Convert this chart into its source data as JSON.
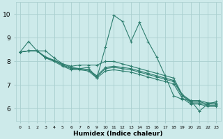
{
  "xlabel": "Humidex (Indice chaleur)",
  "bg_color": "#cdeaea",
  "line_color": "#2d7d6e",
  "grid_color": "#aacfcf",
  "xlim": [
    -0.5,
    23.5
  ],
  "ylim": [
    5.5,
    10.5
  ],
  "yticks": [
    6,
    7,
    8,
    9,
    10
  ],
  "xtick_labels": [
    "0",
    "1",
    "2",
    "3",
    "4",
    "5",
    "6",
    "7",
    "8",
    "9",
    "10",
    "11",
    "12",
    "13",
    "14",
    "15",
    "16",
    "17",
    "18",
    "19",
    "20",
    "21",
    "22",
    "23"
  ],
  "series": [
    {
      "x": [
        0,
        1,
        2,
        3,
        4,
        5,
        6,
        7,
        8,
        9,
        10,
        11,
        12,
        13,
        14,
        15,
        16,
        17,
        18,
        19,
        20,
        21,
        22,
        23
      ],
      "y": [
        8.4,
        8.85,
        8.45,
        8.45,
        8.15,
        7.9,
        7.75,
        7.7,
        7.75,
        7.3,
        8.6,
        9.95,
        9.7,
        8.85,
        9.65,
        8.85,
        8.2,
        7.4,
        6.55,
        6.4,
        6.35,
        5.9,
        6.2,
        6.3
      ]
    },
    {
      "x": [
        0,
        1,
        2,
        3,
        4,
        5,
        6,
        7,
        8,
        9,
        10,
        11,
        12,
        13,
        14,
        15,
        16,
        17,
        18,
        19,
        20,
        21,
        22,
        23
      ],
      "y": [
        8.4,
        8.45,
        8.45,
        8.2,
        8.05,
        7.9,
        7.8,
        7.85,
        7.85,
        7.85,
        8.0,
        8.0,
        7.9,
        7.8,
        7.7,
        7.6,
        7.5,
        7.4,
        7.3,
        6.6,
        6.35,
        6.35,
        6.25,
        6.25
      ]
    },
    {
      "x": [
        0,
        1,
        2,
        3,
        4,
        5,
        6,
        7,
        8,
        9,
        10,
        11,
        12,
        13,
        14,
        15,
        16,
        17,
        18,
        19,
        20,
        21,
        22,
        23
      ],
      "y": [
        8.4,
        8.45,
        8.45,
        8.15,
        8.05,
        7.85,
        7.7,
        7.7,
        7.65,
        7.4,
        7.75,
        7.8,
        7.75,
        7.7,
        7.6,
        7.5,
        7.4,
        7.3,
        7.2,
        6.6,
        6.3,
        6.3,
        6.2,
        6.2
      ]
    },
    {
      "x": [
        0,
        1,
        2,
        3,
        4,
        5,
        6,
        7,
        8,
        9,
        10,
        11,
        12,
        13,
        14,
        15,
        16,
        17,
        18,
        19,
        20,
        21,
        22,
        23
      ],
      "y": [
        8.4,
        8.45,
        8.45,
        8.15,
        8.05,
        7.85,
        7.7,
        7.7,
        7.65,
        7.35,
        7.7,
        7.75,
        7.7,
        7.65,
        7.55,
        7.45,
        7.35,
        7.25,
        7.15,
        6.55,
        6.25,
        6.25,
        6.15,
        6.15
      ]
    },
    {
      "x": [
        0,
        1,
        2,
        3,
        4,
        5,
        6,
        7,
        8,
        9,
        10,
        11,
        12,
        13,
        14,
        15,
        16,
        17,
        18,
        19,
        20,
        21,
        22,
        23
      ],
      "y": [
        8.4,
        8.45,
        8.45,
        8.15,
        8.0,
        7.8,
        7.65,
        7.65,
        7.6,
        7.3,
        7.6,
        7.65,
        7.6,
        7.55,
        7.45,
        7.35,
        7.25,
        7.15,
        7.05,
        6.45,
        6.2,
        6.2,
        6.1,
        6.1
      ]
    }
  ],
  "marker": "+",
  "markersize": 2.5,
  "linewidth": 0.8
}
